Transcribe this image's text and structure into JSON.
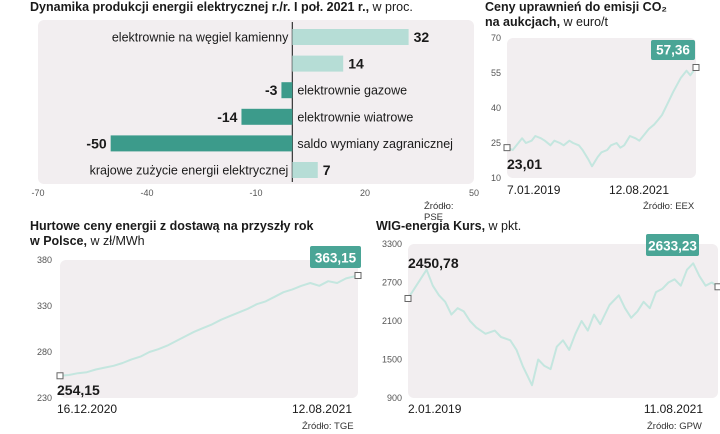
{
  "colors": {
    "panel_bg": "#f2eef0",
    "bar_light": "#b6ddd6",
    "bar_dark": "#3c9b8b",
    "line": "#c4e6df",
    "badge": "#4aa596",
    "zero_line": "#333333"
  },
  "chart1": {
    "title_bold": "Dynamika produkcji energii elektrycznej r./r. I poł. 2021 r.,",
    "title_light": "w proc.",
    "source": "Źródło: PSE"
  },
  "chart2": {
    "title_bold_1": "Ceny uprawnień do emisji CO₂",
    "title_bold_2": "na aukcjach,",
    "title_light": "w euro/t",
    "start_value_label": "23,01",
    "end_value_label": "57,36",
    "start_date": "7.01.2019",
    "end_date": "12.08.2021",
    "source": "Źródło: EEX"
  },
  "chart3": {
    "title_bold_1": "Hurtowe ceny energii z dostawą na przyszły rok",
    "title_bold_2": "w Polsce,",
    "title_light": "w zł/MWh",
    "start_value_label": "254,15",
    "end_value_label": "363,15",
    "start_date": "16.12.2020",
    "end_date": "12.08.2021",
    "source": "Źródło: TGE"
  },
  "chart4": {
    "title_bold": "WIG-energia Kurs,",
    "title_light": "w pkt.",
    "start_value_label": "2450,78",
    "end_value_label": "2633,23",
    "start_date": "2.01.2019",
    "end_date": "11.08.2021",
    "source": "Źródło: GPW"
  },
  "chart_data": [
    {
      "type": "bar",
      "orientation": "horizontal",
      "title": "Dynamika produkcji energii elektrycznej r./r. I poł. 2021 r., w proc.",
      "categories": [
        "elektrownie na węgiel kamienny",
        "",
        "elektrownie gazowe",
        "elektrownie wiatrowe",
        "saldo wymiany zagranicznej",
        "krajowe zużycie energii elektrycznej"
      ],
      "values": [
        32,
        14,
        -3,
        -14,
        -50,
        7
      ],
      "value_labels": [
        "32",
        "14",
        "-3",
        "-14",
        "-50",
        "7"
      ],
      "xlim": [
        -70,
        50
      ],
      "xticks": [
        -70,
        -40,
        -10,
        20,
        50
      ],
      "xtick_labels": [
        "-70",
        "-40",
        "-10",
        "20",
        "50"
      ]
    },
    {
      "type": "line",
      "title": "Ceny uprawnień do emisji CO₂ na aukcjach, w euro/t",
      "ylim": [
        10,
        70
      ],
      "yticks": [
        10,
        25,
        40,
        55,
        70
      ],
      "ytick_labels": [
        "10",
        "25",
        "40",
        "55",
        "70"
      ],
      "x": [
        0,
        3,
        5,
        8,
        10,
        13,
        15,
        18,
        20,
        23,
        25,
        28,
        30,
        33,
        35,
        38,
        40,
        43,
        45,
        48,
        50,
        53,
        55,
        58,
        60,
        62,
        65,
        68,
        70,
        73,
        75,
        78,
        80,
        82,
        85,
        88,
        90,
        92,
        95,
        97,
        100
      ],
      "y": [
        23.01,
        22,
        24,
        27,
        25,
        26,
        28,
        27,
        26,
        24,
        26,
        25,
        24,
        26,
        25,
        24,
        22,
        18,
        15,
        19,
        21,
        22,
        24,
        25,
        23,
        24,
        28,
        27,
        26,
        29,
        31,
        33,
        35,
        37,
        42,
        47,
        50,
        53,
        56,
        54,
        57.36
      ]
    },
    {
      "type": "line",
      "title": "Hurtowe ceny energii z dostawą na przyszły rok w Polsce, w zł/MWh",
      "ylim": [
        230,
        380
      ],
      "yticks": [
        230,
        280,
        330,
        380
      ],
      "ytick_labels": [
        "230",
        "280",
        "330",
        "380"
      ],
      "x": [
        0,
        3,
        6,
        9,
        12,
        15,
        18,
        21,
        24,
        27,
        30,
        33,
        36,
        39,
        42,
        45,
        48,
        51,
        54,
        57,
        60,
        63,
        66,
        69,
        72,
        75,
        78,
        81,
        84,
        87,
        90,
        93,
        96,
        100
      ],
      "y": [
        254.15,
        255,
        257,
        258,
        261,
        263,
        265,
        268,
        272,
        275,
        280,
        283,
        287,
        292,
        297,
        302,
        306,
        310,
        315,
        319,
        323,
        327,
        332,
        335,
        340,
        345,
        348,
        352,
        355,
        352,
        357,
        355,
        360,
        363.15
      ]
    },
    {
      "type": "line",
      "title": "WIG-energia Kurs, w pkt.",
      "ylim": [
        900,
        3300
      ],
      "yticks": [
        900,
        1500,
        2100,
        2700,
        3300
      ],
      "ytick_labels": [
        "900",
        "1500",
        "2100",
        "2700",
        "3300"
      ],
      "x": [
        0,
        2,
        4,
        6,
        8,
        10,
        12,
        14,
        16,
        18,
        20,
        22,
        25,
        28,
        30,
        33,
        35,
        37,
        40,
        42,
        44,
        46,
        48,
        50,
        52,
        54,
        56,
        58,
        60,
        62,
        65,
        68,
        70,
        72,
        74,
        76,
        78,
        80,
        82,
        84,
        86,
        88,
        90,
        92,
        94,
        96,
        98,
        100
      ],
      "y": [
        2450.78,
        2600,
        2750,
        2900,
        2650,
        2500,
        2400,
        2200,
        2300,
        2250,
        2100,
        2000,
        1900,
        1950,
        1850,
        1800,
        1650,
        1400,
        1100,
        1500,
        1400,
        1350,
        1700,
        1800,
        1650,
        1900,
        2100,
        1950,
        2200,
        2050,
        2350,
        2500,
        2300,
        2150,
        2250,
        2400,
        2300,
        2550,
        2600,
        2700,
        2750,
        2650,
        2900,
        3000,
        2800,
        2650,
        2700,
        2633.23
      ]
    }
  ]
}
